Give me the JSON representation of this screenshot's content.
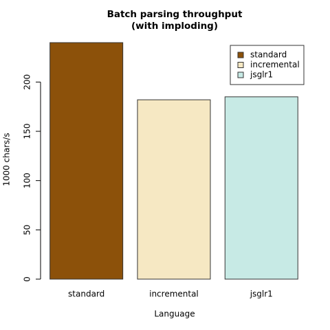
{
  "chart_data": {
    "type": "bar",
    "title": "Batch parsing throughput",
    "subtitle": "(with imploding)",
    "x_label": "Language",
    "y_label": "1000 chars/s",
    "categories": [
      "standard",
      "incremental",
      "jsglr1"
    ],
    "values": [
      240,
      182,
      185
    ],
    "colors": [
      "#8c510a",
      "#f6e8c3",
      "#c7eae5"
    ],
    "ylim": [
      0,
      240
    ],
    "yticks": [
      0,
      50,
      100,
      150,
      200
    ],
    "legend": "top-right"
  }
}
